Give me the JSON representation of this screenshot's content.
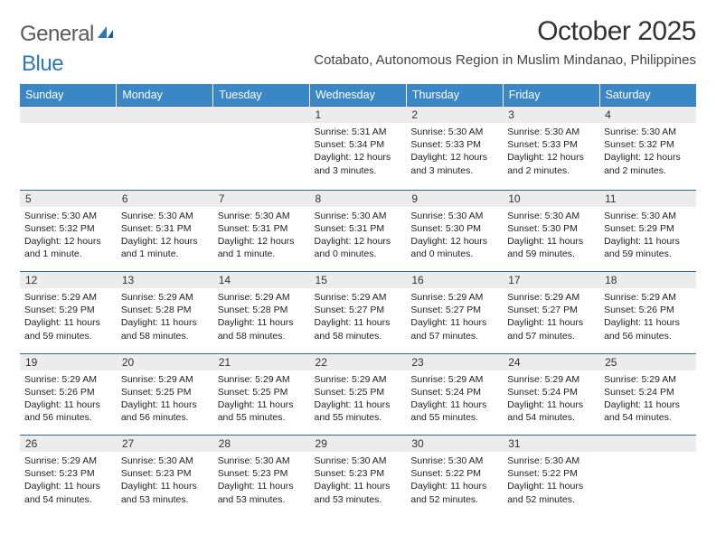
{
  "logo": {
    "text1": "General",
    "text2": "Blue"
  },
  "title": "October 2025",
  "subtitle": "Cotabato, Autonomous Region in Muslim Mindanao, Philippines",
  "colors": {
    "header_bg": "#3b86c5",
    "header_text": "#ffffff",
    "row_sep": "#2f6aa0",
    "daynum_bg": "#ececec",
    "logo_gray": "#5a5a5a",
    "logo_blue": "#2f77b5"
  },
  "day_headers": [
    "Sunday",
    "Monday",
    "Tuesday",
    "Wednesday",
    "Thursday",
    "Friday",
    "Saturday"
  ],
  "weeks": [
    [
      {
        "n": "",
        "lines": []
      },
      {
        "n": "",
        "lines": []
      },
      {
        "n": "",
        "lines": []
      },
      {
        "n": "1",
        "lines": [
          "Sunrise: 5:31 AM",
          "Sunset: 5:34 PM",
          "Daylight: 12 hours and 3 minutes."
        ]
      },
      {
        "n": "2",
        "lines": [
          "Sunrise: 5:30 AM",
          "Sunset: 5:33 PM",
          "Daylight: 12 hours and 3 minutes."
        ]
      },
      {
        "n": "3",
        "lines": [
          "Sunrise: 5:30 AM",
          "Sunset: 5:33 PM",
          "Daylight: 12 hours and 2 minutes."
        ]
      },
      {
        "n": "4",
        "lines": [
          "Sunrise: 5:30 AM",
          "Sunset: 5:32 PM",
          "Daylight: 12 hours and 2 minutes."
        ]
      }
    ],
    [
      {
        "n": "5",
        "lines": [
          "Sunrise: 5:30 AM",
          "Sunset: 5:32 PM",
          "Daylight: 12 hours and 1 minute."
        ]
      },
      {
        "n": "6",
        "lines": [
          "Sunrise: 5:30 AM",
          "Sunset: 5:31 PM",
          "Daylight: 12 hours and 1 minute."
        ]
      },
      {
        "n": "7",
        "lines": [
          "Sunrise: 5:30 AM",
          "Sunset: 5:31 PM",
          "Daylight: 12 hours and 1 minute."
        ]
      },
      {
        "n": "8",
        "lines": [
          "Sunrise: 5:30 AM",
          "Sunset: 5:31 PM",
          "Daylight: 12 hours and 0 minutes."
        ]
      },
      {
        "n": "9",
        "lines": [
          "Sunrise: 5:30 AM",
          "Sunset: 5:30 PM",
          "Daylight: 12 hours and 0 minutes."
        ]
      },
      {
        "n": "10",
        "lines": [
          "Sunrise: 5:30 AM",
          "Sunset: 5:30 PM",
          "Daylight: 11 hours and 59 minutes."
        ]
      },
      {
        "n": "11",
        "lines": [
          "Sunrise: 5:30 AM",
          "Sunset: 5:29 PM",
          "Daylight: 11 hours and 59 minutes."
        ]
      }
    ],
    [
      {
        "n": "12",
        "lines": [
          "Sunrise: 5:29 AM",
          "Sunset: 5:29 PM",
          "Daylight: 11 hours and 59 minutes."
        ]
      },
      {
        "n": "13",
        "lines": [
          "Sunrise: 5:29 AM",
          "Sunset: 5:28 PM",
          "Daylight: 11 hours and 58 minutes."
        ]
      },
      {
        "n": "14",
        "lines": [
          "Sunrise: 5:29 AM",
          "Sunset: 5:28 PM",
          "Daylight: 11 hours and 58 minutes."
        ]
      },
      {
        "n": "15",
        "lines": [
          "Sunrise: 5:29 AM",
          "Sunset: 5:27 PM",
          "Daylight: 11 hours and 58 minutes."
        ]
      },
      {
        "n": "16",
        "lines": [
          "Sunrise: 5:29 AM",
          "Sunset: 5:27 PM",
          "Daylight: 11 hours and 57 minutes."
        ]
      },
      {
        "n": "17",
        "lines": [
          "Sunrise: 5:29 AM",
          "Sunset: 5:27 PM",
          "Daylight: 11 hours and 57 minutes."
        ]
      },
      {
        "n": "18",
        "lines": [
          "Sunrise: 5:29 AM",
          "Sunset: 5:26 PM",
          "Daylight: 11 hours and 56 minutes."
        ]
      }
    ],
    [
      {
        "n": "19",
        "lines": [
          "Sunrise: 5:29 AM",
          "Sunset: 5:26 PM",
          "Daylight: 11 hours and 56 minutes."
        ]
      },
      {
        "n": "20",
        "lines": [
          "Sunrise: 5:29 AM",
          "Sunset: 5:25 PM",
          "Daylight: 11 hours and 56 minutes."
        ]
      },
      {
        "n": "21",
        "lines": [
          "Sunrise: 5:29 AM",
          "Sunset: 5:25 PM",
          "Daylight: 11 hours and 55 minutes."
        ]
      },
      {
        "n": "22",
        "lines": [
          "Sunrise: 5:29 AM",
          "Sunset: 5:25 PM",
          "Daylight: 11 hours and 55 minutes."
        ]
      },
      {
        "n": "23",
        "lines": [
          "Sunrise: 5:29 AM",
          "Sunset: 5:24 PM",
          "Daylight: 11 hours and 55 minutes."
        ]
      },
      {
        "n": "24",
        "lines": [
          "Sunrise: 5:29 AM",
          "Sunset: 5:24 PM",
          "Daylight: 11 hours and 54 minutes."
        ]
      },
      {
        "n": "25",
        "lines": [
          "Sunrise: 5:29 AM",
          "Sunset: 5:24 PM",
          "Daylight: 11 hours and 54 minutes."
        ]
      }
    ],
    [
      {
        "n": "26",
        "lines": [
          "Sunrise: 5:29 AM",
          "Sunset: 5:23 PM",
          "Daylight: 11 hours and 54 minutes."
        ]
      },
      {
        "n": "27",
        "lines": [
          "Sunrise: 5:30 AM",
          "Sunset: 5:23 PM",
          "Daylight: 11 hours and 53 minutes."
        ]
      },
      {
        "n": "28",
        "lines": [
          "Sunrise: 5:30 AM",
          "Sunset: 5:23 PM",
          "Daylight: 11 hours and 53 minutes."
        ]
      },
      {
        "n": "29",
        "lines": [
          "Sunrise: 5:30 AM",
          "Sunset: 5:23 PM",
          "Daylight: 11 hours and 53 minutes."
        ]
      },
      {
        "n": "30",
        "lines": [
          "Sunrise: 5:30 AM",
          "Sunset: 5:22 PM",
          "Daylight: 11 hours and 52 minutes."
        ]
      },
      {
        "n": "31",
        "lines": [
          "Sunrise: 5:30 AM",
          "Sunset: 5:22 PM",
          "Daylight: 11 hours and 52 minutes."
        ]
      },
      {
        "n": "",
        "lines": []
      }
    ]
  ]
}
